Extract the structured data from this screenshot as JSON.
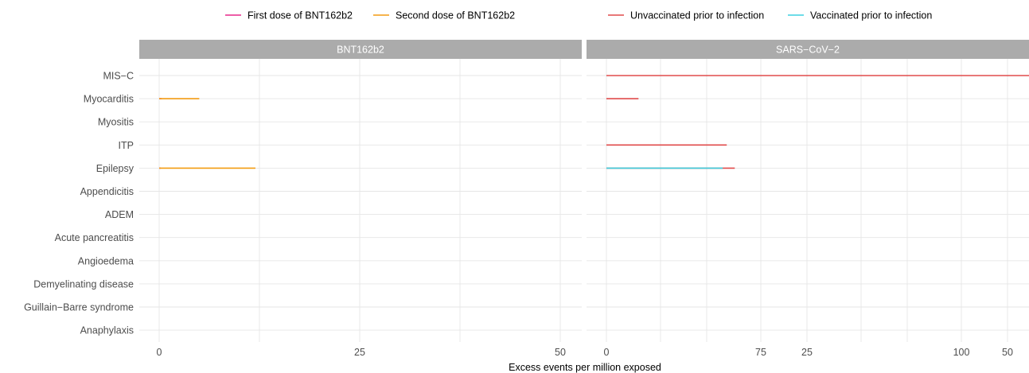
{
  "chart_data": {
    "type": "bar",
    "orientation": "horizontal",
    "xlabel": "Excess events per million exposed",
    "ylabel": "",
    "xlim": [
      -5,
      107
    ],
    "x_ticks": [
      0,
      25,
      50,
      75,
      100
    ],
    "grid": true,
    "legend_placement": "top",
    "categories": [
      "MIS−C",
      "Myocarditis",
      "Myositis",
      "ITP",
      "Epilepsy",
      "Appendicitis",
      "ADEM",
      "Acute pancreatitis",
      "Angioedema",
      "Demyelinating disease",
      "Guillain−Barre syndrome",
      "Anaphylaxis"
    ],
    "legends": [
      {
        "entries": [
          {
            "name": "First dose of BNT162b2",
            "color": "#e7298a"
          },
          {
            "name": "Second dose of BNT162b2",
            "color": "#f39c12"
          }
        ]
      },
      {
        "entries": [
          {
            "name": "Unvaccinated prior to infection",
            "color": "#e04b4b"
          },
          {
            "name": "Vaccinated prior to infection",
            "color": "#3dd0e0"
          }
        ]
      }
    ],
    "panels": [
      {
        "title": "BNT162b2",
        "series": [
          {
            "name": "First dose of BNT162b2",
            "color": "#e7298a",
            "values": [
              0,
              0.3,
              0,
              0,
              0.2,
              0,
              0,
              0,
              0,
              0,
              0,
              0
            ]
          },
          {
            "name": "Second dose of BNT162b2",
            "color": "#f39c12",
            "values": [
              0,
              5,
              0,
              0,
              12,
              0,
              0,
              0,
              0,
              0,
              0,
              0
            ]
          }
        ]
      },
      {
        "title": "SARS−CoV−2",
        "series": [
          {
            "name": "Unvaccinated prior to infection",
            "color": "#e04b4b",
            "values": [
              84,
              4,
              0,
              15,
              16,
              0,
              0,
              0,
              0,
              0,
              0,
              0
            ]
          },
          {
            "name": "Vaccinated prior to infection",
            "color": "#3dd0e0",
            "values": [
              0,
              0,
              0,
              0,
              14.5,
              0,
              0,
              0,
              0,
              0,
              0,
              0
            ]
          }
        ]
      }
    ]
  }
}
